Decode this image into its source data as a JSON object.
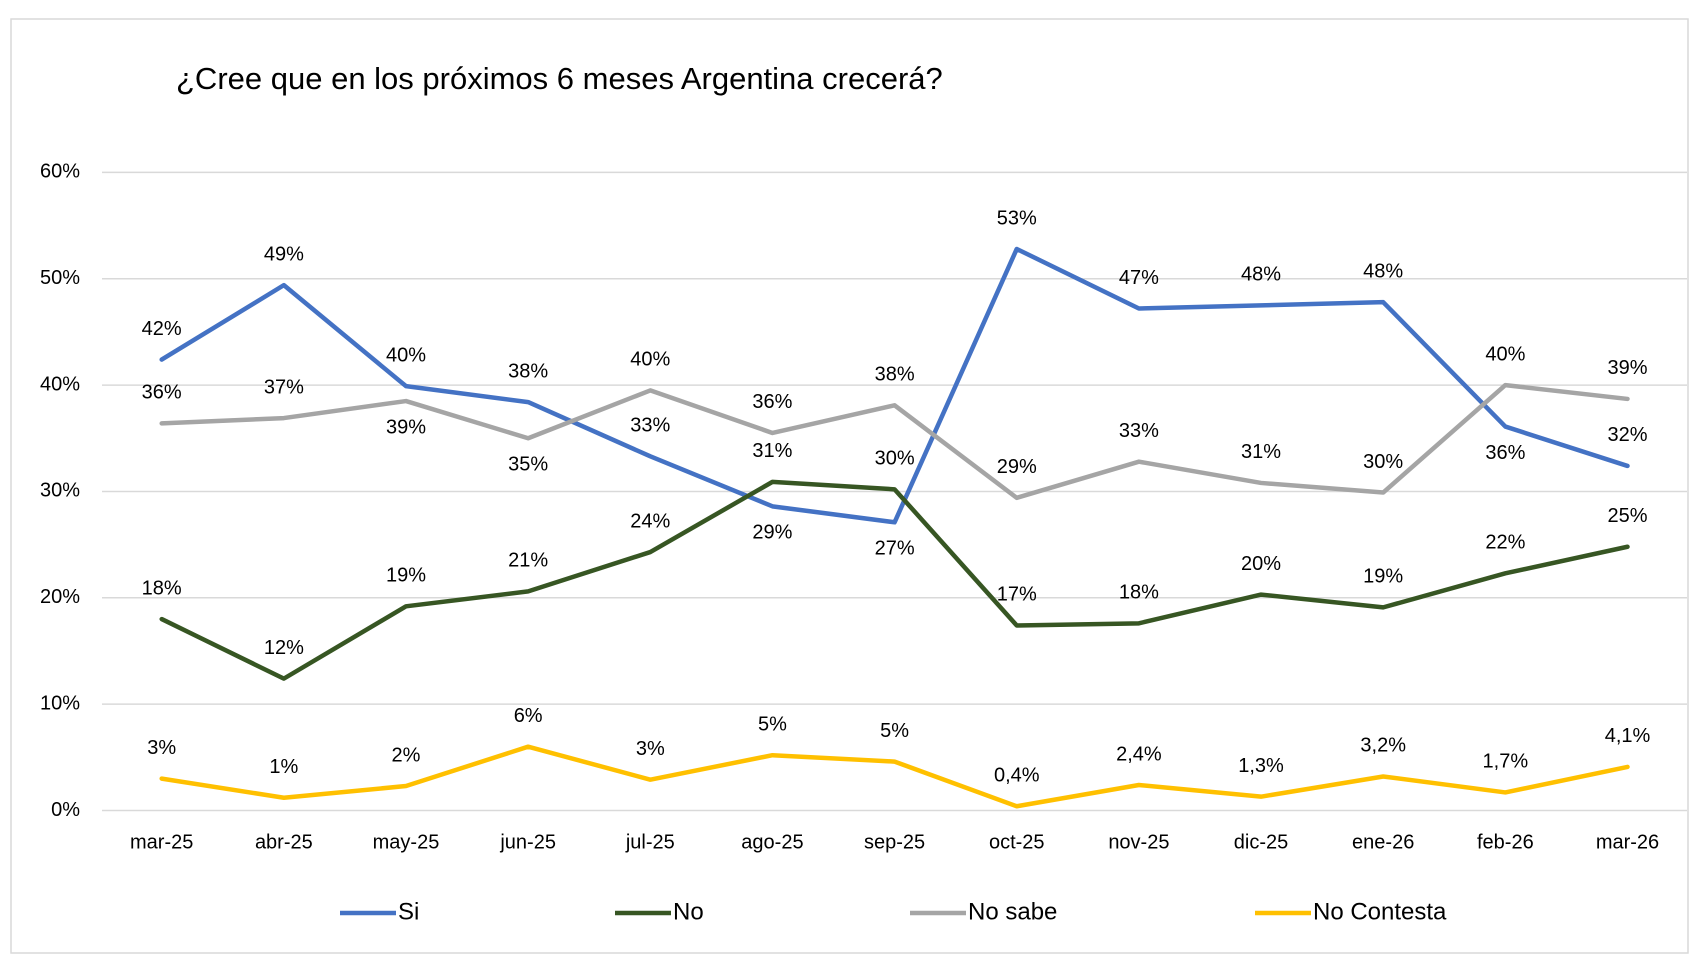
{
  "chart_data": {
    "type": "line",
    "title": "¿Cree que en los próximos 6 meses Argentina crecerá?",
    "categories": [
      "mar-25",
      "abr-25",
      "may-25",
      "jun-25",
      "jul-25",
      "ago-25",
      "sep-25",
      "oct-25",
      "nov-25",
      "dic-25",
      "ene-26",
      "feb-26",
      "mar-26"
    ],
    "ylim": [
      0,
      60
    ],
    "yticks": [
      {
        "value": 0,
        "label": "0%"
      },
      {
        "value": 10,
        "label": "10%"
      },
      {
        "value": 20,
        "label": "20%"
      },
      {
        "value": 30,
        "label": "30%"
      },
      {
        "value": 40,
        "label": "40%"
      },
      {
        "value": 50,
        "label": "50%"
      },
      {
        "value": 60,
        "label": "60%"
      }
    ],
    "grid": true,
    "legend": "bottom",
    "series": [
      {
        "name": "Si",
        "color": "#4472c4",
        "values": [
          42.4,
          49.4,
          39.9,
          38.4,
          33.3,
          28.6,
          27.1,
          52.8,
          47.2,
          47.5,
          47.8,
          36.1,
          32.4
        ],
        "value_labels": [
          "42%",
          "49%",
          "40%",
          "38%",
          "33%",
          "29%",
          "27%",
          "53%",
          "47%",
          "48%",
          "48%",
          "36%",
          "32%"
        ]
      },
      {
        "name": "No",
        "color": "#375623",
        "values": [
          18.0,
          12.4,
          19.2,
          20.6,
          24.3,
          30.9,
          30.2,
          17.4,
          17.6,
          20.3,
          19.1,
          22.3,
          24.8
        ],
        "value_labels": [
          "18%",
          "12%",
          "19%",
          "21%",
          "24%",
          "31%",
          "30%",
          "17%",
          "18%",
          "20%",
          "19%",
          "22%",
          "25%"
        ]
      },
      {
        "name": "No sabe",
        "color": "#a5a5a5",
        "values": [
          36.4,
          36.9,
          38.5,
          35.0,
          39.5,
          35.5,
          38.1,
          29.4,
          32.8,
          30.8,
          29.9,
          40.0,
          38.7
        ],
        "value_labels": [
          "36%",
          "37%",
          "39%",
          "35%",
          "40%",
          "36%",
          "38%",
          "29%",
          "33%",
          "31%",
          "30%",
          "40%",
          "39%"
        ]
      },
      {
        "name": "No Contesta",
        "color": "#ffc000",
        "values": [
          3.0,
          1.2,
          2.3,
          6.0,
          2.9,
          5.2,
          4.6,
          0.4,
          2.4,
          1.3,
          3.2,
          1.7,
          4.1
        ],
        "value_labels": [
          "3%",
          "1%",
          "2%",
          "6%",
          "3%",
          "5%",
          "5%",
          "0,4%",
          "2,4%",
          "1,3%",
          "3,2%",
          "1,7%",
          "4,1%"
        ]
      }
    ]
  }
}
